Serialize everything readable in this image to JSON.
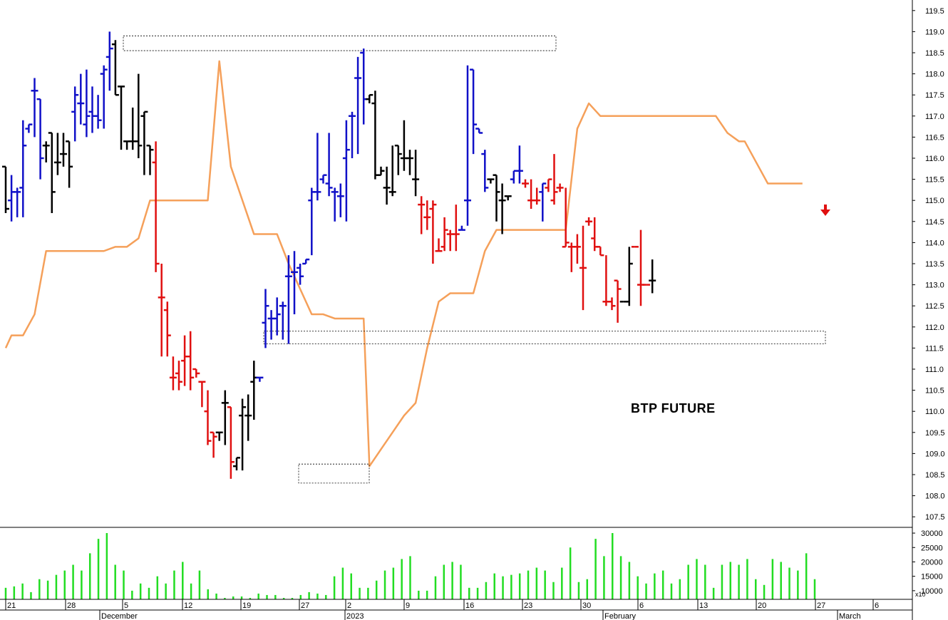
{
  "chart_data": {
    "type": "ohlc-bar",
    "title": "BTP FUTURE",
    "price_axis": {
      "ylim": [
        107.25,
        119.75
      ],
      "ticks": [
        "107.5",
        "108.0",
        "108.5",
        "109.0",
        "109.5",
        "110.0",
        "110.5",
        "111.0",
        "111.5",
        "112.0",
        "112.5",
        "113.0",
        "113.5",
        "114.0",
        "114.5",
        "115.0",
        "115.5",
        "116.0",
        "116.5",
        "117.0",
        "117.5",
        "118.0",
        "118.5",
        "119.0",
        "119.5"
      ]
    },
    "volume_axis": {
      "ylim": [
        7000,
        31500
      ],
      "ticks": [
        "10000",
        "15000",
        "20000",
        "25000",
        "30000"
      ],
      "multiplier_label": "x10"
    },
    "x_axis": {
      "day_labels": [
        "21",
        "28",
        "5",
        "12",
        "19",
        "27",
        "2",
        "9",
        "16",
        "23",
        "30",
        "6",
        "13",
        "20",
        "27",
        "6"
      ],
      "month_labels": [
        "December",
        "2023",
        "February",
        "March"
      ]
    },
    "colors": {
      "up": "#1010c8",
      "down": "#e01010",
      "neutral": "#000000",
      "trend": "#f5a05a",
      "volume": "#22dd22",
      "arrow": "#e01010"
    },
    "bars": [
      {
        "o": 115.8,
        "h": 115.8,
        "l": 114.7,
        "c": 114.8,
        "color": "neutral"
      },
      {
        "o": 115.0,
        "h": 115.6,
        "l": 114.5,
        "c": 115.2,
        "color": "up"
      },
      {
        "o": 115.2,
        "h": 115.3,
        "l": 114.6,
        "c": 115.2,
        "color": "up"
      },
      {
        "o": 115.3,
        "h": 116.9,
        "l": 114.6,
        "c": 116.3,
        "color": "up"
      },
      {
        "o": 116.7,
        "h": 116.8,
        "l": 116.6,
        "c": 116.8,
        "color": "up"
      },
      {
        "o": 117.6,
        "h": 117.9,
        "l": 116.5,
        "c": 117.6,
        "color": "up"
      },
      {
        "o": 117.4,
        "h": 117.4,
        "l": 115.5,
        "c": 116.0,
        "color": "up"
      },
      {
        "o": 116.3,
        "h": 116.4,
        "l": 115.9,
        "c": 116.3,
        "color": "neutral"
      },
      {
        "o": 116.6,
        "h": 116.6,
        "l": 114.7,
        "c": 115.2,
        "color": "neutral"
      },
      {
        "o": 115.9,
        "h": 116.6,
        "l": 115.6,
        "c": 115.9,
        "color": "neutral"
      },
      {
        "o": 116.1,
        "h": 116.6,
        "l": 115.8,
        "c": 116.1,
        "color": "neutral"
      },
      {
        "o": 116.4,
        "h": 116.4,
        "l": 115.3,
        "c": 115.8,
        "color": "neutral"
      },
      {
        "o": 117.1,
        "h": 117.7,
        "l": 116.4,
        "c": 117.5,
        "color": "up"
      },
      {
        "o": 117.3,
        "h": 118.0,
        "l": 116.8,
        "c": 117.3,
        "color": "up"
      },
      {
        "o": 116.8,
        "h": 118.1,
        "l": 116.5,
        "c": 117.0,
        "color": "up"
      },
      {
        "o": 117.1,
        "h": 117.7,
        "l": 116.6,
        "c": 117.0,
        "color": "up"
      },
      {
        "o": 117.0,
        "h": 117.5,
        "l": 116.7,
        "c": 116.9,
        "color": "up"
      },
      {
        "o": 118.0,
        "h": 118.2,
        "l": 116.7,
        "c": 118.1,
        "color": "up"
      },
      {
        "o": 118.4,
        "h": 119.0,
        "l": 117.6,
        "c": 118.6,
        "color": "up"
      },
      {
        "o": 118.7,
        "h": 118.8,
        "l": 117.5,
        "c": 117.5,
        "color": "neutral"
      },
      {
        "o": 117.7,
        "h": 117.7,
        "l": 116.2,
        "c": 117.7,
        "color": "neutral"
      },
      {
        "o": 116.4,
        "h": 116.4,
        "l": 116.2,
        "c": 116.4,
        "color": "neutral"
      },
      {
        "o": 116.4,
        "h": 117.2,
        "l": 116.2,
        "c": 116.4,
        "color": "neutral"
      },
      {
        "o": 116.4,
        "h": 118.0,
        "l": 116.0,
        "c": 116.3,
        "color": "neutral"
      },
      {
        "o": 117.0,
        "h": 117.1,
        "l": 115.6,
        "c": 117.1,
        "color": "neutral"
      },
      {
        "o": 116.3,
        "h": 116.3,
        "l": 115.6,
        "c": 116.2,
        "color": "neutral"
      },
      {
        "o": 115.9,
        "h": 116.4,
        "l": 113.3,
        "c": 113.5,
        "color": "down"
      },
      {
        "o": 112.7,
        "h": 113.5,
        "l": 111.3,
        "c": 112.7,
        "color": "down"
      },
      {
        "o": 112.4,
        "h": 112.6,
        "l": 111.3,
        "c": 111.8,
        "color": "down"
      },
      {
        "o": 110.8,
        "h": 111.3,
        "l": 110.5,
        "c": 110.8,
        "color": "down"
      },
      {
        "o": 110.9,
        "h": 111.2,
        "l": 110.5,
        "c": 110.7,
        "color": "down"
      },
      {
        "o": 111.2,
        "h": 111.8,
        "l": 110.6,
        "c": 111.3,
        "color": "down"
      },
      {
        "o": 111.3,
        "h": 111.9,
        "l": 110.5,
        "c": 110.8,
        "color": "down"
      },
      {
        "o": 111.0,
        "h": 111.0,
        "l": 110.8,
        "c": 110.9,
        "color": "down"
      },
      {
        "o": 110.7,
        "h": 110.7,
        "l": 110.1,
        "c": 110.7,
        "color": "down"
      },
      {
        "o": 110.0,
        "h": 110.5,
        "l": 109.2,
        "c": 109.3,
        "color": "down"
      },
      {
        "o": 109.5,
        "h": 109.5,
        "l": 108.9,
        "c": 109.4,
        "color": "down"
      },
      {
        "o": 109.5,
        "h": 109.5,
        "l": 109.3,
        "c": 109.5,
        "color": "neutral"
      },
      {
        "o": 110.2,
        "h": 110.5,
        "l": 109.2,
        "c": 110.2,
        "color": "neutral"
      },
      {
        "o": 110.1,
        "h": 110.1,
        "l": 108.4,
        "c": 108.8,
        "color": "down"
      },
      {
        "o": 108.7,
        "h": 108.9,
        "l": 108.6,
        "c": 108.9,
        "color": "neutral"
      },
      {
        "o": 109.9,
        "h": 110.3,
        "l": 108.6,
        "c": 110.1,
        "color": "neutral"
      },
      {
        "o": 109.9,
        "h": 110.4,
        "l": 109.3,
        "c": 109.9,
        "color": "neutral"
      },
      {
        "o": 110.7,
        "h": 111.2,
        "l": 109.8,
        "c": 110.8,
        "color": "neutral"
      },
      {
        "o": 110.8,
        "h": 110.8,
        "l": 110.7,
        "c": 110.8,
        "color": "up"
      },
      {
        "o": 112.1,
        "h": 112.9,
        "l": 111.5,
        "c": 112.5,
        "color": "up"
      },
      {
        "o": 112.2,
        "h": 112.4,
        "l": 111.7,
        "c": 112.2,
        "color": "up"
      },
      {
        "o": 112.2,
        "h": 112.7,
        "l": 111.8,
        "c": 112.3,
        "color": "up"
      },
      {
        "o": 112.5,
        "h": 112.6,
        "l": 111.7,
        "c": 112.5,
        "color": "up"
      },
      {
        "o": 113.2,
        "h": 113.7,
        "l": 111.6,
        "c": 113.2,
        "color": "up"
      },
      {
        "o": 113.3,
        "h": 113.8,
        "l": 112.3,
        "c": 113.3,
        "color": "up"
      },
      {
        "o": 113.4,
        "h": 113.5,
        "l": 113.0,
        "c": 113.2,
        "color": "up"
      },
      {
        "o": 113.5,
        "h": 113.6,
        "l": 113.5,
        "c": 113.6,
        "color": "up"
      },
      {
        "o": 115.0,
        "h": 115.3,
        "l": 113.7,
        "c": 115.2,
        "color": "up"
      },
      {
        "o": 115.2,
        "h": 116.6,
        "l": 115.0,
        "c": 115.2,
        "color": "up"
      },
      {
        "o": 115.5,
        "h": 115.6,
        "l": 115.4,
        "c": 115.6,
        "color": "up"
      },
      {
        "o": 115.4,
        "h": 116.6,
        "l": 115.1,
        "c": 115.3,
        "color": "up"
      },
      {
        "o": 115.2,
        "h": 115.3,
        "l": 114.5,
        "c": 115.2,
        "color": "up"
      },
      {
        "o": 115.1,
        "h": 115.4,
        "l": 114.6,
        "c": 115.1,
        "color": "up"
      },
      {
        "o": 116.0,
        "h": 116.9,
        "l": 114.5,
        "c": 116.2,
        "color": "up"
      },
      {
        "o": 117.0,
        "h": 117.1,
        "l": 116.0,
        "c": 117.0,
        "color": "up"
      },
      {
        "o": 117.9,
        "h": 118.4,
        "l": 116.1,
        "c": 117.9,
        "color": "up"
      },
      {
        "o": 118.5,
        "h": 118.6,
        "l": 116.8,
        "c": 117.4,
        "color": "up"
      },
      {
        "o": 117.4,
        "h": 117.5,
        "l": 117.3,
        "c": 117.5,
        "color": "neutral"
      },
      {
        "o": 117.3,
        "h": 117.6,
        "l": 115.5,
        "c": 115.6,
        "color": "neutral"
      },
      {
        "o": 115.6,
        "h": 115.8,
        "l": 115.6,
        "c": 115.7,
        "color": "neutral"
      },
      {
        "o": 115.3,
        "h": 115.8,
        "l": 114.9,
        "c": 115.3,
        "color": "neutral"
      },
      {
        "o": 115.2,
        "h": 116.3,
        "l": 115.1,
        "c": 115.2,
        "color": "neutral"
      },
      {
        "o": 116.3,
        "h": 116.3,
        "l": 115.6,
        "c": 116.1,
        "color": "neutral"
      },
      {
        "o": 116.0,
        "h": 116.9,
        "l": 115.7,
        "c": 116.0,
        "color": "neutral"
      },
      {
        "o": 116.0,
        "h": 116.2,
        "l": 115.6,
        "c": 116.0,
        "color": "neutral"
      },
      {
        "o": 115.5,
        "h": 116.2,
        "l": 115.1,
        "c": 115.5,
        "color": "neutral"
      },
      {
        "o": 114.9,
        "h": 115.1,
        "l": 114.2,
        "c": 114.9,
        "color": "down"
      },
      {
        "o": 114.6,
        "h": 115.0,
        "l": 114.3,
        "c": 114.6,
        "color": "down"
      },
      {
        "o": 114.8,
        "h": 115.0,
        "l": 113.5,
        "c": 114.9,
        "color": "down"
      },
      {
        "o": 113.8,
        "h": 114.1,
        "l": 113.8,
        "c": 113.8,
        "color": "down"
      },
      {
        "o": 113.9,
        "h": 114.6,
        "l": 113.8,
        "c": 114.3,
        "color": "down"
      },
      {
        "o": 114.2,
        "h": 114.3,
        "l": 113.8,
        "c": 114.2,
        "color": "down"
      },
      {
        "o": 114.2,
        "h": 114.9,
        "l": 113.8,
        "c": 114.2,
        "color": "down"
      },
      {
        "o": 114.3,
        "h": 114.4,
        "l": 114.3,
        "c": 114.3,
        "color": "up"
      },
      {
        "o": 115.0,
        "h": 118.2,
        "l": 114.4,
        "c": 115.0,
        "color": "up"
      },
      {
        "o": 118.1,
        "h": 118.1,
        "l": 116.1,
        "c": 116.8,
        "color": "up"
      },
      {
        "o": 116.7,
        "h": 116.7,
        "l": 116.6,
        "c": 116.6,
        "color": "up"
      },
      {
        "o": 116.1,
        "h": 116.2,
        "l": 115.2,
        "c": 115.3,
        "color": "up"
      },
      {
        "o": 115.5,
        "h": 115.5,
        "l": 115.4,
        "c": 115.5,
        "color": "neutral"
      },
      {
        "o": 115.6,
        "h": 115.6,
        "l": 114.5,
        "c": 115.2,
        "color": "neutral"
      },
      {
        "o": 115.0,
        "h": 115.4,
        "l": 114.2,
        "c": 115.0,
        "color": "neutral"
      },
      {
        "o": 115.1,
        "h": 115.1,
        "l": 115.0,
        "c": 115.1,
        "color": "neutral"
      },
      {
        "o": 115.5,
        "h": 115.7,
        "l": 115.4,
        "c": 115.7,
        "color": "up"
      },
      {
        "o": 115.7,
        "h": 116.3,
        "l": 115.4,
        "c": 115.7,
        "color": "up"
      },
      {
        "o": 115.4,
        "h": 115.5,
        "l": 115.3,
        "c": 115.4,
        "color": "down"
      },
      {
        "o": 115.0,
        "h": 115.5,
        "l": 114.8,
        "c": 115.0,
        "color": "down"
      },
      {
        "o": 115.0,
        "h": 115.3,
        "l": 114.9,
        "c": 115.0,
        "color": "down"
      },
      {
        "o": 115.2,
        "h": 115.4,
        "l": 114.5,
        "c": 115.4,
        "color": "up"
      },
      {
        "o": 115.3,
        "h": 115.5,
        "l": 115.2,
        "c": 115.5,
        "color": "down"
      },
      {
        "o": 115.0,
        "h": 116.1,
        "l": 114.9,
        "c": 115.2,
        "color": "down"
      },
      {
        "o": 115.3,
        "h": 115.4,
        "l": 115.2,
        "c": 115.3,
        "color": "down"
      },
      {
        "o": 113.9,
        "h": 115.3,
        "l": 113.9,
        "c": 114.0,
        "color": "down"
      },
      {
        "o": 113.9,
        "h": 114.0,
        "l": 113.3,
        "c": 113.9,
        "color": "down"
      },
      {
        "o": 113.9,
        "h": 114.2,
        "l": 113.5,
        "c": 113.9,
        "color": "down"
      },
      {
        "o": 113.4,
        "h": 114.4,
        "l": 112.4,
        "c": 113.4,
        "color": "down"
      },
      {
        "o": 114.5,
        "h": 114.6,
        "l": 114.4,
        "c": 114.5,
        "color": "down"
      },
      {
        "o": 114.1,
        "h": 114.6,
        "l": 113.8,
        "c": 113.9,
        "color": "down"
      },
      {
        "o": 113.9,
        "h": 113.9,
        "l": 113.7,
        "c": 113.7,
        "color": "down"
      },
      {
        "o": 112.6,
        "h": 113.7,
        "l": 112.5,
        "c": 112.6,
        "color": "down"
      },
      {
        "o": 112.6,
        "h": 112.7,
        "l": 112.4,
        "c": 112.5,
        "color": "down"
      },
      {
        "o": 113.1,
        "h": 113.1,
        "l": 112.1,
        "c": 112.9,
        "color": "down"
      },
      {
        "o": 112.6,
        "h": 112.6,
        "l": 112.6,
        "c": 112.6,
        "color": "neutral"
      },
      {
        "o": 112.6,
        "h": 113.9,
        "l": 112.5,
        "c": 113.5,
        "color": "neutral"
      },
      {
        "o": 113.9,
        "h": 113.9,
        "l": 113.9,
        "c": 113.9,
        "color": "down"
      },
      {
        "o": 113.0,
        "h": 114.3,
        "l": 112.5,
        "c": 113.0,
        "color": "down"
      },
      {
        "o": 113.0,
        "h": 113.0,
        "l": 113.0,
        "c": 113.0,
        "color": "down"
      },
      {
        "o": 113.1,
        "h": 113.6,
        "l": 112.8,
        "c": 113.1,
        "color": "neutral"
      }
    ],
    "trend_line": [
      {
        "i": 0,
        "v": 111.5
      },
      {
        "i": 1,
        "v": 111.8
      },
      {
        "i": 3,
        "v": 111.8
      },
      {
        "i": 5,
        "v": 112.3
      },
      {
        "i": 7,
        "v": 113.8
      },
      {
        "i": 17,
        "v": 113.8
      },
      {
        "i": 19,
        "v": 113.9
      },
      {
        "i": 21,
        "v": 113.9
      },
      {
        "i": 23,
        "v": 114.1
      },
      {
        "i": 25,
        "v": 115.0
      },
      {
        "i": 35,
        "v": 115.0
      },
      {
        "i": 37,
        "v": 118.3
      },
      {
        "i": 39,
        "v": 115.8
      },
      {
        "i": 43,
        "v": 114.2
      },
      {
        "i": 47,
        "v": 114.2
      },
      {
        "i": 49,
        "v": 113.5
      },
      {
        "i": 51,
        "v": 112.9
      },
      {
        "i": 53,
        "v": 112.3
      },
      {
        "i": 55,
        "v": 112.3
      },
      {
        "i": 57,
        "v": 112.2
      },
      {
        "i": 62,
        "v": 112.2
      },
      {
        "i": 63,
        "v": 108.7
      },
      {
        "i": 65,
        "v": 109.1
      },
      {
        "i": 67,
        "v": 109.5
      },
      {
        "i": 69,
        "v": 109.9
      },
      {
        "i": 71,
        "v": 110.2
      },
      {
        "i": 73,
        "v": 111.5
      },
      {
        "i": 75,
        "v": 112.6
      },
      {
        "i": 77,
        "v": 112.8
      },
      {
        "i": 81,
        "v": 112.8
      },
      {
        "i": 83,
        "v": 113.8
      },
      {
        "i": 85,
        "v": 114.3
      },
      {
        "i": 97,
        "v": 114.3
      },
      {
        "i": 99,
        "v": 116.7
      },
      {
        "i": 101,
        "v": 117.3
      },
      {
        "i": 103,
        "v": 117.0
      },
      {
        "i": 123,
        "v": 117.0
      },
      {
        "i": 125,
        "v": 116.6
      },
      {
        "i": 127,
        "v": 116.4
      },
      {
        "i": 128,
        "v": 116.4
      },
      {
        "i": 130,
        "v": 115.9
      },
      {
        "i": 132,
        "v": 115.4
      },
      {
        "i": 138,
        "v": 115.4
      }
    ],
    "volume": [
      11000,
      11500,
      12500,
      9500,
      14000,
      13500,
      15500,
      17000,
      19000,
      17000,
      23000,
      28000,
      30000,
      19000,
      17000,
      10000,
      12500,
      11000,
      15000,
      12500,
      17000,
      20000,
      12500,
      17000,
      10500,
      9000,
      7500,
      8000,
      8000,
      7500,
      9000,
      8500,
      8500,
      7500,
      7500,
      8500,
      9500,
      9000,
      8500,
      15000,
      18000,
      16000,
      11000,
      11000,
      13500,
      17000,
      18000,
      21000,
      22000,
      10000,
      10000,
      15000,
      19000,
      20000,
      19000,
      11000,
      11000,
      13000,
      16000,
      15000,
      15500,
      16000,
      17000,
      18000,
      17000,
      13000,
      18000,
      25000,
      13000,
      14000,
      28000,
      22000,
      30000,
      22000,
      20000,
      15000,
      12500,
      16000,
      17000,
      12500,
      14000,
      19000,
      21000,
      19000,
      11000,
      19000,
      20000,
      19000,
      21000,
      14000,
      12000,
      21000,
      20000,
      18000,
      17000,
      23000,
      14000
    ],
    "boxes": [
      {
        "x0": 0,
        "x1": 37,
        "y0": 118.55,
        "y1": 118.9
      },
      {
        "x0": 34,
        "x1": 96,
        "y0": 111.6,
        "y1": 111.9
      },
      {
        "x0": 34,
        "x1": 63,
        "y0": 108.3,
        "y1": 108.75
      }
    ],
    "signal_arrow": {
      "dir": "down",
      "value": 114.7
    }
  }
}
